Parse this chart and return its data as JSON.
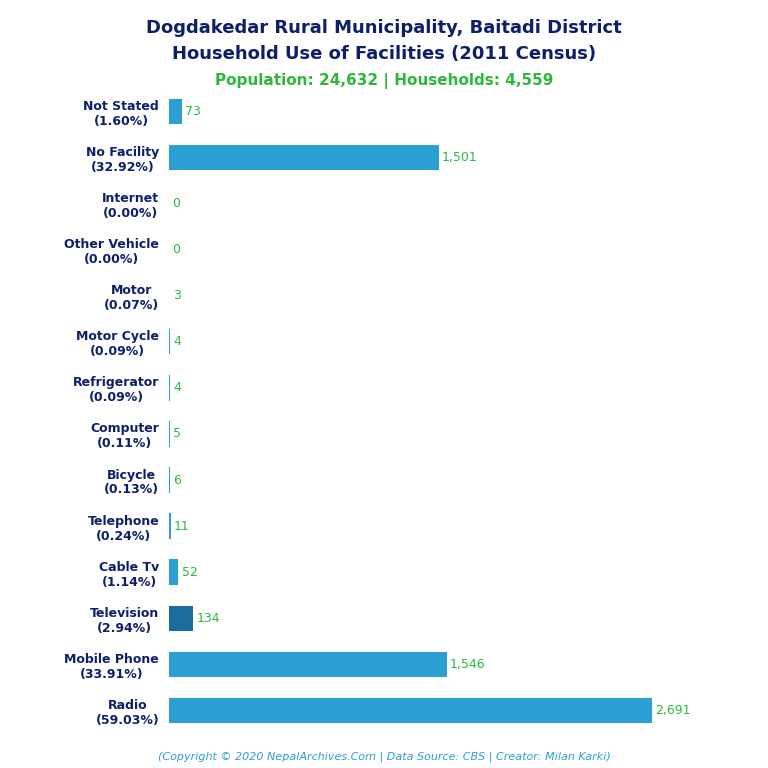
{
  "title_line1": "Dogdakedar Rural Municipality, Baitadi District",
  "title_line2": "Household Use of Facilities (2011 Census)",
  "subtitle": "Population: 24,632 | Households: 4,559",
  "footer": "(Copyright © 2020 NepalArchives.Com | Data Source: CBS | Creator: Milan Karki)",
  "categories": [
    "Radio\n(59.03%)",
    "Mobile Phone\n(33.91%)",
    "Television\n(2.94%)",
    "Cable Tv\n(1.14%)",
    "Telephone\n(0.24%)",
    "Bicycle\n(0.13%)",
    "Computer\n(0.11%)",
    "Refrigerator\n(0.09%)",
    "Motor Cycle\n(0.09%)",
    "Motor\n(0.07%)",
    "Other Vehicle\n(0.00%)",
    "Internet\n(0.00%)",
    "No Facility\n(32.92%)",
    "Not Stated\n(1.60%)"
  ],
  "values": [
    2691,
    1546,
    134,
    52,
    11,
    6,
    5,
    4,
    4,
    3,
    0,
    0,
    1501,
    73
  ],
  "bar_colors": [
    "#2B9FD4",
    "#2B9FD4",
    "#1A6E9E",
    "#2B9FD4",
    "#2B9FD4",
    "#2B9FD4",
    "#2B9FD4",
    "#2B9FD4",
    "#2B9FD4",
    "#2B9FD4",
    "#2B9FD4",
    "#2B9FD4",
    "#2B9FD4",
    "#2B9FD4"
  ],
  "title_color": "#0D1F6B",
  "subtitle_color": "#2DB83D",
  "footer_color": "#2B9FD4",
  "value_color": "#2DB83D",
  "label_color": "#0D1F6B",
  "bg_color": "#FFFFFF",
  "xlim": [
    0,
    2950
  ],
  "bar_height": 0.55,
  "figsize": [
    7.68,
    7.68
  ],
  "dpi": 100
}
